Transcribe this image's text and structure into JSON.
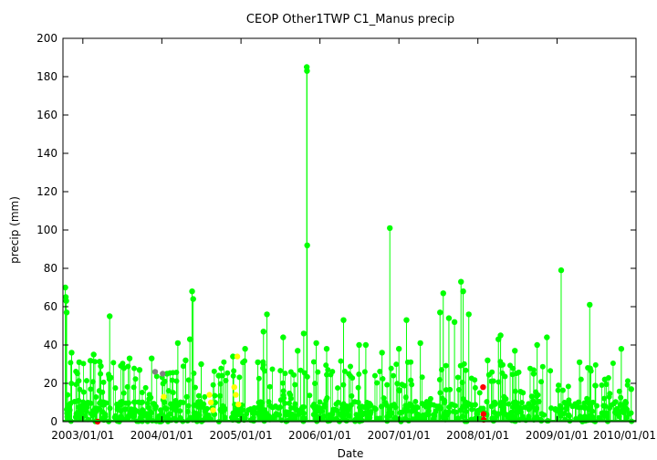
{
  "chart_data": {
    "type": "scatter",
    "title": "CEOP Other1TWP C1_Manus  precip",
    "xlabel": "Date",
    "ylabel": "precip (mm)",
    "xlim": [
      "2002-10-01",
      "2010-01-01"
    ],
    "ylim": [
      0,
      200
    ],
    "x_ticks": [
      "2003/01/01",
      "2004/01/01",
      "2005/01/01",
      "2006/01/01",
      "2007/01/01",
      "2008/01/01",
      "2009/01/01",
      "2010/01/01"
    ],
    "y_ticks": [
      0,
      20,
      40,
      60,
      80,
      100,
      120,
      140,
      160,
      180,
      200
    ],
    "grid": false,
    "legend": "none",
    "series_colors": {
      "good": "#00ff00",
      "flagged": "#ffff00",
      "bad": "#ff0000",
      "missing": "#808080"
    },
    "series": [
      {
        "color": "#00ff00",
        "style": "points+lines",
        "points": [
          [
            "2002-10-12",
            70
          ],
          [
            "2002-10-14",
            65
          ],
          [
            "2002-10-16",
            63
          ],
          [
            "2002-10-18",
            57
          ],
          [
            "2002-11-10",
            36
          ],
          [
            "2002-12-15",
            31
          ],
          [
            "2003-02-20",
            35
          ],
          [
            "2003-03-25",
            29
          ],
          [
            "2003-05-05",
            55
          ],
          [
            "2003-07-10",
            28
          ],
          [
            "2003-08-05",
            33
          ],
          [
            "2003-09-20",
            27
          ],
          [
            "2003-11-15",
            33
          ],
          [
            "2004-01-25",
            25
          ],
          [
            "2004-03-15",
            41
          ],
          [
            "2004-04-20",
            32
          ],
          [
            "2004-05-10",
            43
          ],
          [
            "2004-05-20",
            68
          ],
          [
            "2004-05-25",
            64
          ],
          [
            "2004-07-01",
            30
          ],
          [
            "2004-09-20",
            24
          ],
          [
            "2004-11-25",
            34
          ],
          [
            "2005-01-20",
            38
          ],
          [
            "2005-03-20",
            31
          ],
          [
            "2005-04-15",
            47
          ],
          [
            "2005-05-01",
            56
          ],
          [
            "2005-07-15",
            44
          ],
          [
            "2005-09-20",
            37
          ],
          [
            "2005-10-18",
            46
          ],
          [
            "2005-11-01",
            185
          ],
          [
            "2005-11-02",
            183
          ],
          [
            "2005-11-03",
            92
          ],
          [
            "2005-12-15",
            41
          ],
          [
            "2006-02-01",
            38
          ],
          [
            "2006-04-20",
            53
          ],
          [
            "2006-07-01",
            40
          ],
          [
            "2006-08-01",
            40
          ],
          [
            "2006-10-15",
            36
          ],
          [
            "2006-11-20",
            101
          ],
          [
            "2007-01-01",
            38
          ],
          [
            "2007-02-05",
            53
          ],
          [
            "2007-04-10",
            41
          ],
          [
            "2007-07-25",
            67
          ],
          [
            "2007-07-10",
            57
          ],
          [
            "2007-08-20",
            54
          ],
          [
            "2007-09-15",
            52
          ],
          [
            "2007-10-15",
            73
          ],
          [
            "2007-10-25",
            68
          ],
          [
            "2007-11-20",
            56
          ],
          [
            "2008-02-15",
            32
          ],
          [
            "2008-04-05",
            43
          ],
          [
            "2008-04-15",
            45
          ],
          [
            "2008-06-20",
            37
          ],
          [
            "2008-09-15",
            25
          ],
          [
            "2008-10-01",
            40
          ],
          [
            "2008-11-15",
            44
          ],
          [
            "2009-01-20",
            79
          ],
          [
            "2009-04-15",
            31
          ],
          [
            "2009-06-01",
            61
          ],
          [
            "2009-08-10",
            22
          ],
          [
            "2009-10-25",
            38
          ],
          [
            "2009-12-10",
            17
          ]
        ]
      },
      {
        "color": "#ffff00",
        "style": "points",
        "points": [
          [
            "2004-01-10",
            13
          ],
          [
            "2004-08-08",
            14
          ],
          [
            "2004-08-15",
            10
          ],
          [
            "2004-08-25",
            6
          ],
          [
            "2004-12-01",
            18
          ],
          [
            "2004-12-08",
            14
          ],
          [
            "2004-12-15",
            34
          ],
          [
            "2004-12-20",
            9
          ]
        ]
      },
      {
        "color": "#ff0000",
        "style": "points",
        "points": [
          [
            "2003-03-10",
            0
          ],
          [
            "2008-01-25",
            18
          ],
          [
            "2008-01-27",
            4
          ],
          [
            "2008-01-28",
            1
          ]
        ]
      },
      {
        "color": "#808080",
        "style": "points",
        "points": [
          [
            "2003-12-01",
            26
          ],
          [
            "2004-01-05",
            25
          ]
        ]
      }
    ]
  }
}
